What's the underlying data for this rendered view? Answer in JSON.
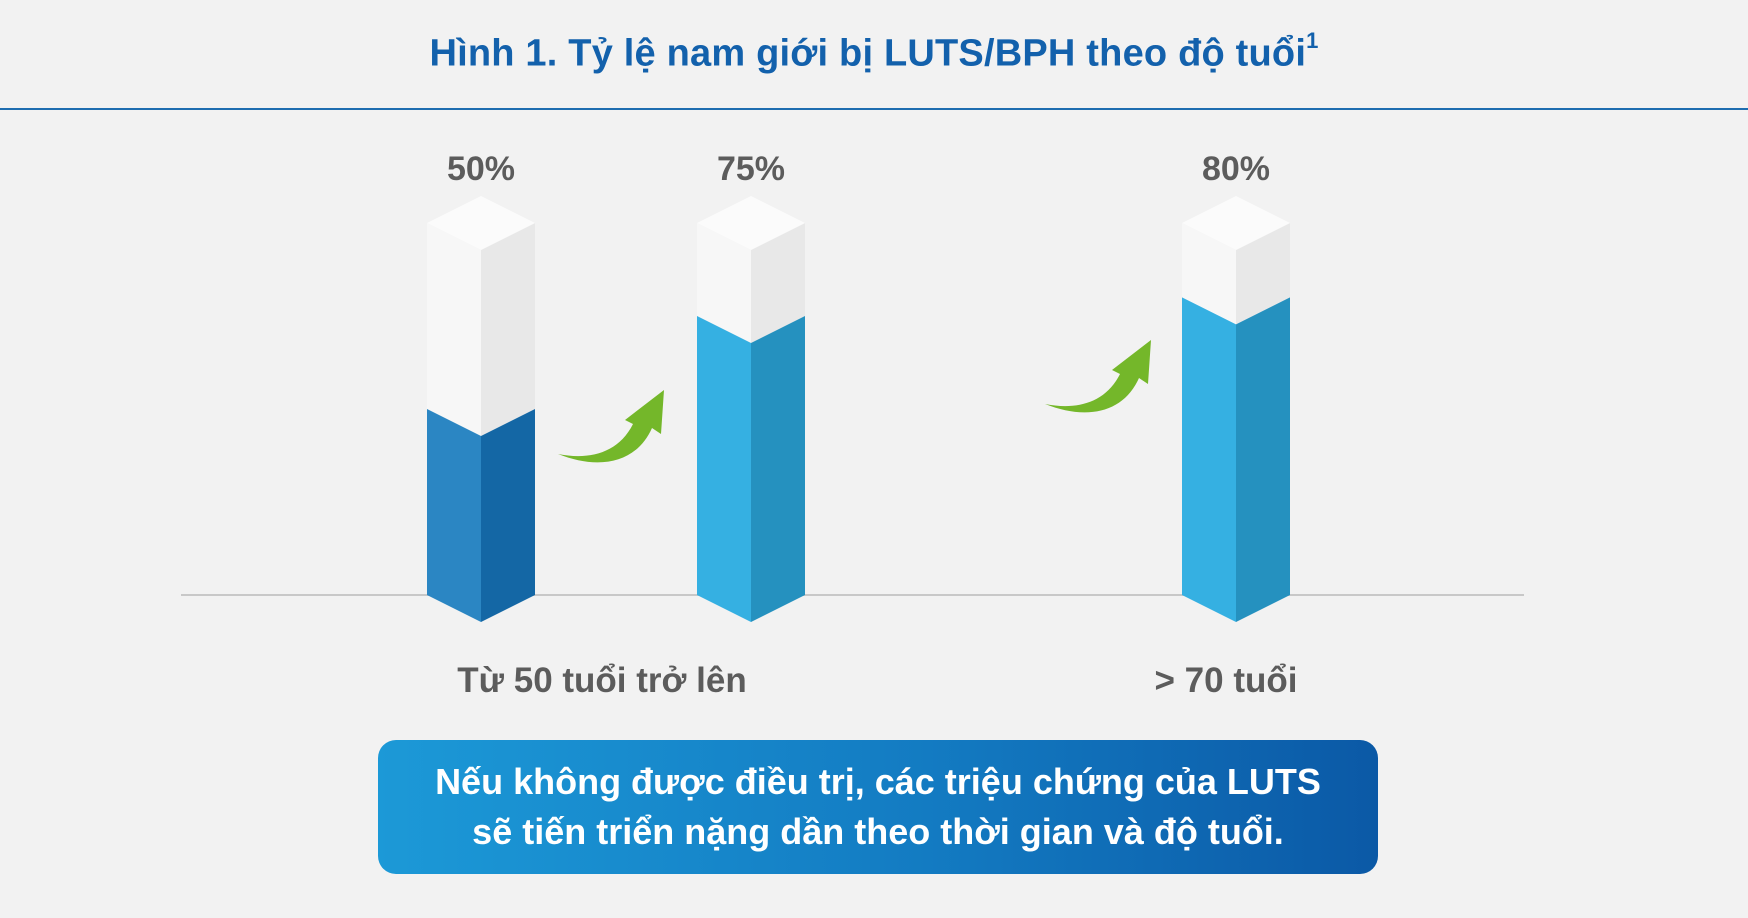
{
  "title": {
    "text": "Hình 1. Tỷ lệ nam giới bị LUTS/BPH theo độ tuổi",
    "superscript": "1"
  },
  "chart_data": {
    "type": "bar",
    "ylim": [
      0,
      100
    ],
    "grid": false,
    "legend": "none",
    "bars": [
      {
        "value": 50,
        "label": "50%",
        "fill_front": "#2b86c3",
        "fill_side": "#1467a5"
      },
      {
        "value": 75,
        "label": "75%",
        "fill_front": "#35b0e2",
        "fill_side": "#2591bf"
      },
      {
        "value": 80,
        "label": "80%",
        "fill_front": "#35b0e2",
        "fill_side": "#2591bf"
      }
    ],
    "category_labels": [
      "Từ 50 tuổi trở lên",
      "> 70 tuổi"
    ],
    "colors": {
      "empty_front": "#f7f7f7",
      "empty_side": "#e8e8e8",
      "top_face": "#fbfbfb",
      "arrow": "#74b72a",
      "baseline": "#c8c8c8",
      "value_label": "#5c5c5c"
    }
  },
  "callout": {
    "line1": "Nếu không được điều trị, các triệu chứng của LUTS",
    "line2": "sẽ tiến triển nặng dần theo thời gian và độ tuổi."
  }
}
